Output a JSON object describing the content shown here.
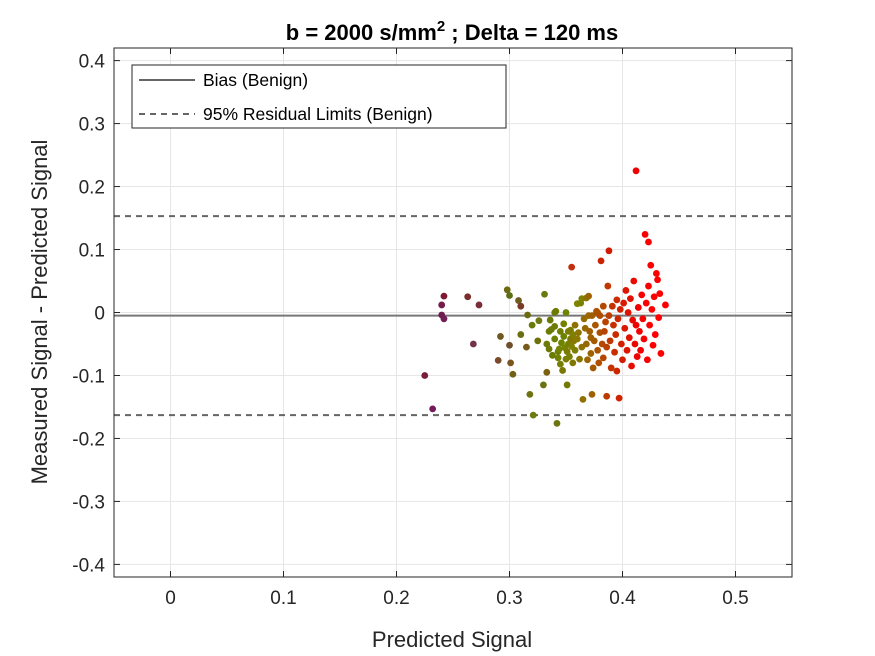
{
  "chart_data": {
    "type": "scatter",
    "title_main": "b = 2000 s/mm",
    "title_sup": "2",
    "title_rest": " ; Delta = 120 ms",
    "xlabel": "Predicted Signal",
    "ylabel": "Measured Signal - Predicted Signal",
    "xlim": [
      -0.05,
      0.55
    ],
    "ylim": [
      -0.42,
      0.42
    ],
    "xticks": [
      0,
      0.1,
      0.2,
      0.3,
      0.4,
      0.5
    ],
    "xtick_labels": [
      "0",
      "0.1",
      "0.2",
      "0.3",
      "0.4",
      "0.5"
    ],
    "yticks": [
      0.4,
      0.3,
      0.2,
      0.1,
      0,
      -0.1,
      -0.2,
      -0.3,
      -0.4
    ],
    "ytick_labels": [
      "0.4",
      "0.3",
      "0.2",
      "0.1",
      "0",
      "-0.1",
      "-0.2",
      "-0.3",
      "-0.4"
    ],
    "grid": true,
    "legend_position": "top-left",
    "legend": [
      {
        "label": "Bias (Benign)",
        "style": "solid",
        "color": "#666666"
      },
      {
        "label": "95% Residual Limits (Benign)",
        "style": "dashed",
        "color": "#666666"
      }
    ],
    "reference_lines": [
      {
        "name": "bias",
        "y": -0.005,
        "style": "solid",
        "color": "#777777"
      },
      {
        "name": "upper_limit",
        "y": 0.153,
        "style": "dashed",
        "color": "#666666"
      },
      {
        "name": "lower_limit",
        "y": -0.163,
        "style": "dashed",
        "color": "#666666"
      }
    ],
    "colors": {
      "low_signal": "#6e1f4a",
      "mid_signal": "#6b8a00",
      "high_signal": "#ff0000"
    },
    "points": [
      [
        0.225,
        -0.1,
        "#7a1c3c"
      ],
      [
        0.232,
        -0.153,
        "#74195a"
      ],
      [
        0.24,
        0.012,
        "#761c4a"
      ],
      [
        0.24,
        -0.004,
        "#6e1e4e"
      ],
      [
        0.242,
        0.026,
        "#7d1a32"
      ],
      [
        0.242,
        -0.01,
        "#6f1f54"
      ],
      [
        0.263,
        0.025,
        "#7a2d2a"
      ],
      [
        0.268,
        -0.05,
        "#73314a"
      ],
      [
        0.273,
        0.012,
        "#7b2c3a"
      ],
      [
        0.29,
        -0.076,
        "#7a4a2a"
      ],
      [
        0.292,
        -0.038,
        "#6d5a20"
      ],
      [
        0.298,
        0.036,
        "#6e6a10"
      ],
      [
        0.3,
        -0.052,
        "#704f2c"
      ],
      [
        0.3,
        0.027,
        "#5e6e16"
      ],
      [
        0.301,
        -0.08,
        "#7a5520"
      ],
      [
        0.303,
        -0.098,
        "#736016"
      ],
      [
        0.308,
        0.019,
        "#6d5b20"
      ],
      [
        0.31,
        0.01,
        "#7a3a2a"
      ],
      [
        0.31,
        -0.035,
        "#6a6e10"
      ],
      [
        0.315,
        -0.055,
        "#7a5a1a"
      ],
      [
        0.316,
        -0.004,
        "#6a6a14"
      ],
      [
        0.318,
        -0.13,
        "#6e7210"
      ],
      [
        0.32,
        -0.02,
        "#6a7a08"
      ],
      [
        0.321,
        -0.163,
        "#6e7a0c"
      ],
      [
        0.325,
        -0.045,
        "#6e7008"
      ],
      [
        0.326,
        -0.013,
        "#6e7a10"
      ],
      [
        0.33,
        -0.115,
        "#6c7212"
      ],
      [
        0.331,
        0.029,
        "#6a7a0c"
      ],
      [
        0.333,
        -0.095,
        "#7a6010"
      ],
      [
        0.333,
        -0.05,
        "#6c7a08"
      ],
      [
        0.335,
        -0.058,
        "#6e7a08"
      ],
      [
        0.335,
        -0.03,
        "#6d7a04"
      ],
      [
        0.336,
        -0.012,
        "#6a7a08"
      ],
      [
        0.337,
        -0.027,
        "#6c7a08"
      ],
      [
        0.338,
        -0.068,
        "#6a7c00"
      ],
      [
        0.34,
        -0.042,
        "#6e8000"
      ],
      [
        0.34,
        -0.022,
        "#6e7a08"
      ],
      [
        0.34,
        0.0,
        "#6a7a0c"
      ],
      [
        0.341,
        0.002,
        "#6d7a00"
      ],
      [
        0.342,
        -0.176,
        "#6e7410"
      ],
      [
        0.343,
        -0.062,
        "#6b7e00"
      ],
      [
        0.343,
        -0.072,
        "#738000"
      ],
      [
        0.344,
        -0.058,
        "#748400"
      ],
      [
        0.345,
        -0.03,
        "#6e7e00"
      ],
      [
        0.345,
        -0.082,
        "#768000"
      ],
      [
        0.346,
        -0.048,
        "#6e8400"
      ],
      [
        0.347,
        -0.092,
        "#7a7800"
      ],
      [
        0.348,
        -0.038,
        "#6d8200"
      ],
      [
        0.348,
        -0.018,
        "#758000"
      ],
      [
        0.349,
        -0.056,
        "#728600"
      ],
      [
        0.35,
        0.0,
        "#6f8400"
      ],
      [
        0.35,
        -0.074,
        "#7a7c00"
      ],
      [
        0.351,
        -0.062,
        "#7e7a00"
      ],
      [
        0.351,
        -0.115,
        "#727800"
      ],
      [
        0.352,
        -0.05,
        "#787e00"
      ],
      [
        0.352,
        -0.03,
        "#7a7e00"
      ],
      [
        0.353,
        -0.07,
        "#768000"
      ],
      [
        0.354,
        -0.042,
        "#7e7800"
      ],
      [
        0.354,
        -0.028,
        "#7c7c00"
      ],
      [
        0.355,
        0.072,
        "#c03010"
      ],
      [
        0.355,
        -0.054,
        "#828000"
      ],
      [
        0.356,
        -0.035,
        "#808000"
      ],
      [
        0.356,
        -0.08,
        "#7e7800"
      ],
      [
        0.357,
        -0.045,
        "#867800"
      ],
      [
        0.358,
        -0.06,
        "#7c8000"
      ],
      [
        0.358,
        -0.02,
        "#8e7000"
      ],
      [
        0.36,
        0.014,
        "#808400"
      ],
      [
        0.36,
        -0.042,
        "#8a7a00"
      ],
      [
        0.361,
        -0.032,
        "#8e7400"
      ],
      [
        0.362,
        -0.074,
        "#867600"
      ],
      [
        0.363,
        0.015,
        "#7a8000"
      ],
      [
        0.364,
        -0.055,
        "#8e7200"
      ],
      [
        0.364,
        0.022,
        "#7e8200"
      ],
      [
        0.365,
        -0.138,
        "#927000"
      ],
      [
        0.366,
        -0.01,
        "#926c00"
      ],
      [
        0.367,
        -0.025,
        "#966a00"
      ],
      [
        0.368,
        0.023,
        "#907200"
      ],
      [
        0.368,
        -0.05,
        "#966800"
      ],
      [
        0.369,
        -0.075,
        "#9e6400"
      ],
      [
        0.37,
        -0.005,
        "#9a6800"
      ],
      [
        0.37,
        0.026,
        "#9c6400"
      ],
      [
        0.371,
        -0.03,
        "#a25e00"
      ],
      [
        0.372,
        -0.04,
        "#a06000"
      ],
      [
        0.372,
        -0.065,
        "#9c6200"
      ],
      [
        0.373,
        -0.005,
        "#a05c00"
      ],
      [
        0.373,
        -0.13,
        "#9e6000"
      ],
      [
        0.374,
        -0.088,
        "#a25a00"
      ],
      [
        0.375,
        -0.045,
        "#a45a00"
      ],
      [
        0.376,
        -0.02,
        "#a85600"
      ],
      [
        0.377,
        0.002,
        "#aa5400"
      ],
      [
        0.378,
        -0.06,
        "#ac5200"
      ],
      [
        0.378,
        0.0,
        "#aa5200"
      ],
      [
        0.379,
        -0.08,
        "#ae5000"
      ],
      [
        0.38,
        -0.032,
        "#ae4e00"
      ],
      [
        0.38,
        -0.005,
        "#b04c00"
      ],
      [
        0.381,
        0.082,
        "#cc2200"
      ],
      [
        0.382,
        -0.05,
        "#b24a00"
      ],
      [
        0.383,
        0.01,
        "#b44800"
      ],
      [
        0.383,
        -0.072,
        "#b44600"
      ],
      [
        0.384,
        -0.03,
        "#b64400"
      ],
      [
        0.385,
        -0.015,
        "#b84200"
      ],
      [
        0.386,
        -0.055,
        "#ba4000"
      ],
      [
        0.386,
        -0.133,
        "#bc3c00"
      ],
      [
        0.387,
        0.042,
        "#c23600"
      ],
      [
        0.388,
        -0.005,
        "#be3c00"
      ],
      [
        0.388,
        0.098,
        "#d01a00"
      ],
      [
        0.389,
        -0.045,
        "#c03800"
      ],
      [
        0.39,
        -0.088,
        "#c23400"
      ],
      [
        0.391,
        0.01,
        "#c43200"
      ],
      [
        0.392,
        -0.02,
        "#c63000"
      ],
      [
        0.393,
        -0.063,
        "#c82e00"
      ],
      [
        0.394,
        -0.035,
        "#ca2c00"
      ],
      [
        0.395,
        0.02,
        "#cc2a00"
      ],
      [
        0.395,
        -0.093,
        "#cc2800"
      ],
      [
        0.396,
        -0.01,
        "#ce2600"
      ],
      [
        0.397,
        -0.136,
        "#d02200"
      ],
      [
        0.398,
        0.005,
        "#d22000"
      ],
      [
        0.399,
        -0.05,
        "#d41e00"
      ],
      [
        0.4,
        -0.075,
        "#d61c00"
      ],
      [
        0.401,
        0.015,
        "#d81a00"
      ],
      [
        0.402,
        -0.025,
        "#da1800"
      ],
      [
        0.403,
        0.035,
        "#dc1600"
      ],
      [
        0.404,
        -0.06,
        "#de1400"
      ],
      [
        0.405,
        0.0,
        "#e01200"
      ],
      [
        0.406,
        -0.04,
        "#e21000"
      ],
      [
        0.407,
        0.022,
        "#e40e00"
      ],
      [
        0.408,
        -0.085,
        "#e60c00"
      ],
      [
        0.409,
        -0.012,
        "#e80a00"
      ],
      [
        0.41,
        0.05,
        "#ea0800"
      ],
      [
        0.411,
        -0.05,
        "#ec0600"
      ],
      [
        0.412,
        0.225,
        "#f00000"
      ],
      [
        0.412,
        -0.02,
        "#ee0400"
      ],
      [
        0.413,
        -0.07,
        "#f00200"
      ],
      [
        0.414,
        0.008,
        "#f20000"
      ],
      [
        0.415,
        -0.03,
        "#f40000"
      ],
      [
        0.416,
        -0.06,
        "#f40000"
      ],
      [
        0.417,
        0.028,
        "#f60000"
      ],
      [
        0.418,
        -0.01,
        "#f60000"
      ],
      [
        0.419,
        -0.042,
        "#f80000"
      ],
      [
        0.42,
        0.124,
        "#f80000"
      ],
      [
        0.421,
        0.015,
        "#fa0000"
      ],
      [
        0.422,
        -0.075,
        "#fa0000"
      ],
      [
        0.423,
        0.042,
        "#fa0000"
      ],
      [
        0.423,
        0.112,
        "#fc0000"
      ],
      [
        0.424,
        -0.02,
        "#fc0000"
      ],
      [
        0.425,
        0.075,
        "#fc0000"
      ],
      [
        0.426,
        0.005,
        "#fe0000"
      ],
      [
        0.427,
        -0.052,
        "#fe0000"
      ],
      [
        0.428,
        0.025,
        "#ff0000"
      ],
      [
        0.429,
        -0.035,
        "#ff0000"
      ],
      [
        0.43,
        0.062,
        "#ff0000"
      ],
      [
        0.431,
        0.052,
        "#ff0000"
      ],
      [
        0.432,
        -0.008,
        "#ff0000"
      ],
      [
        0.433,
        0.03,
        "#ff0000"
      ],
      [
        0.434,
        -0.065,
        "#ff0000"
      ],
      [
        0.438,
        0.012,
        "#ff0000"
      ]
    ]
  }
}
